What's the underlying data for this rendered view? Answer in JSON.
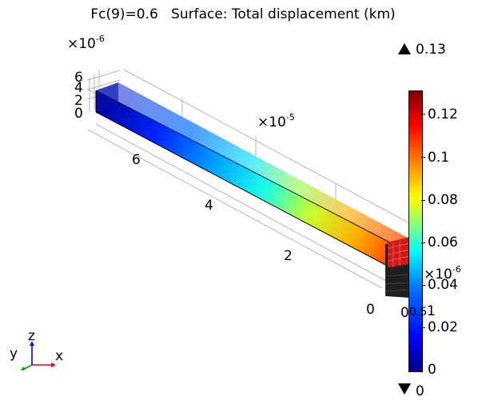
{
  "title": "Fc(9)=0.6   Surface: Total displacement (km)",
  "axis_exponents": {
    "vertical": "×10",
    "vertical_pow": "-6",
    "depth": "×10",
    "depth_pow": "-5",
    "side": "×10",
    "side_pow": "-6"
  },
  "vertical_ticks": [
    "6",
    "4",
    "2",
    "0"
  ],
  "depth_ticks": [
    "6",
    "4",
    "2",
    "0"
  ],
  "side_ticks": [
    "0",
    "0.5",
    "1"
  ],
  "colorbar": {
    "max_label": "0.13",
    "min_label": "0",
    "ticks": [
      "0.12",
      "0.1",
      "0.08",
      "0.06",
      "0.04",
      "0.02",
      "0"
    ]
  },
  "triad": {
    "x": "x",
    "y": "y",
    "z": "z"
  },
  "colors": {
    "beam_far": "#00007f",
    "beam_near": "#ff3000",
    "axis_x": "#ff0000",
    "axis_y": "#00a000",
    "axis_z": "#0000ff"
  }
}
